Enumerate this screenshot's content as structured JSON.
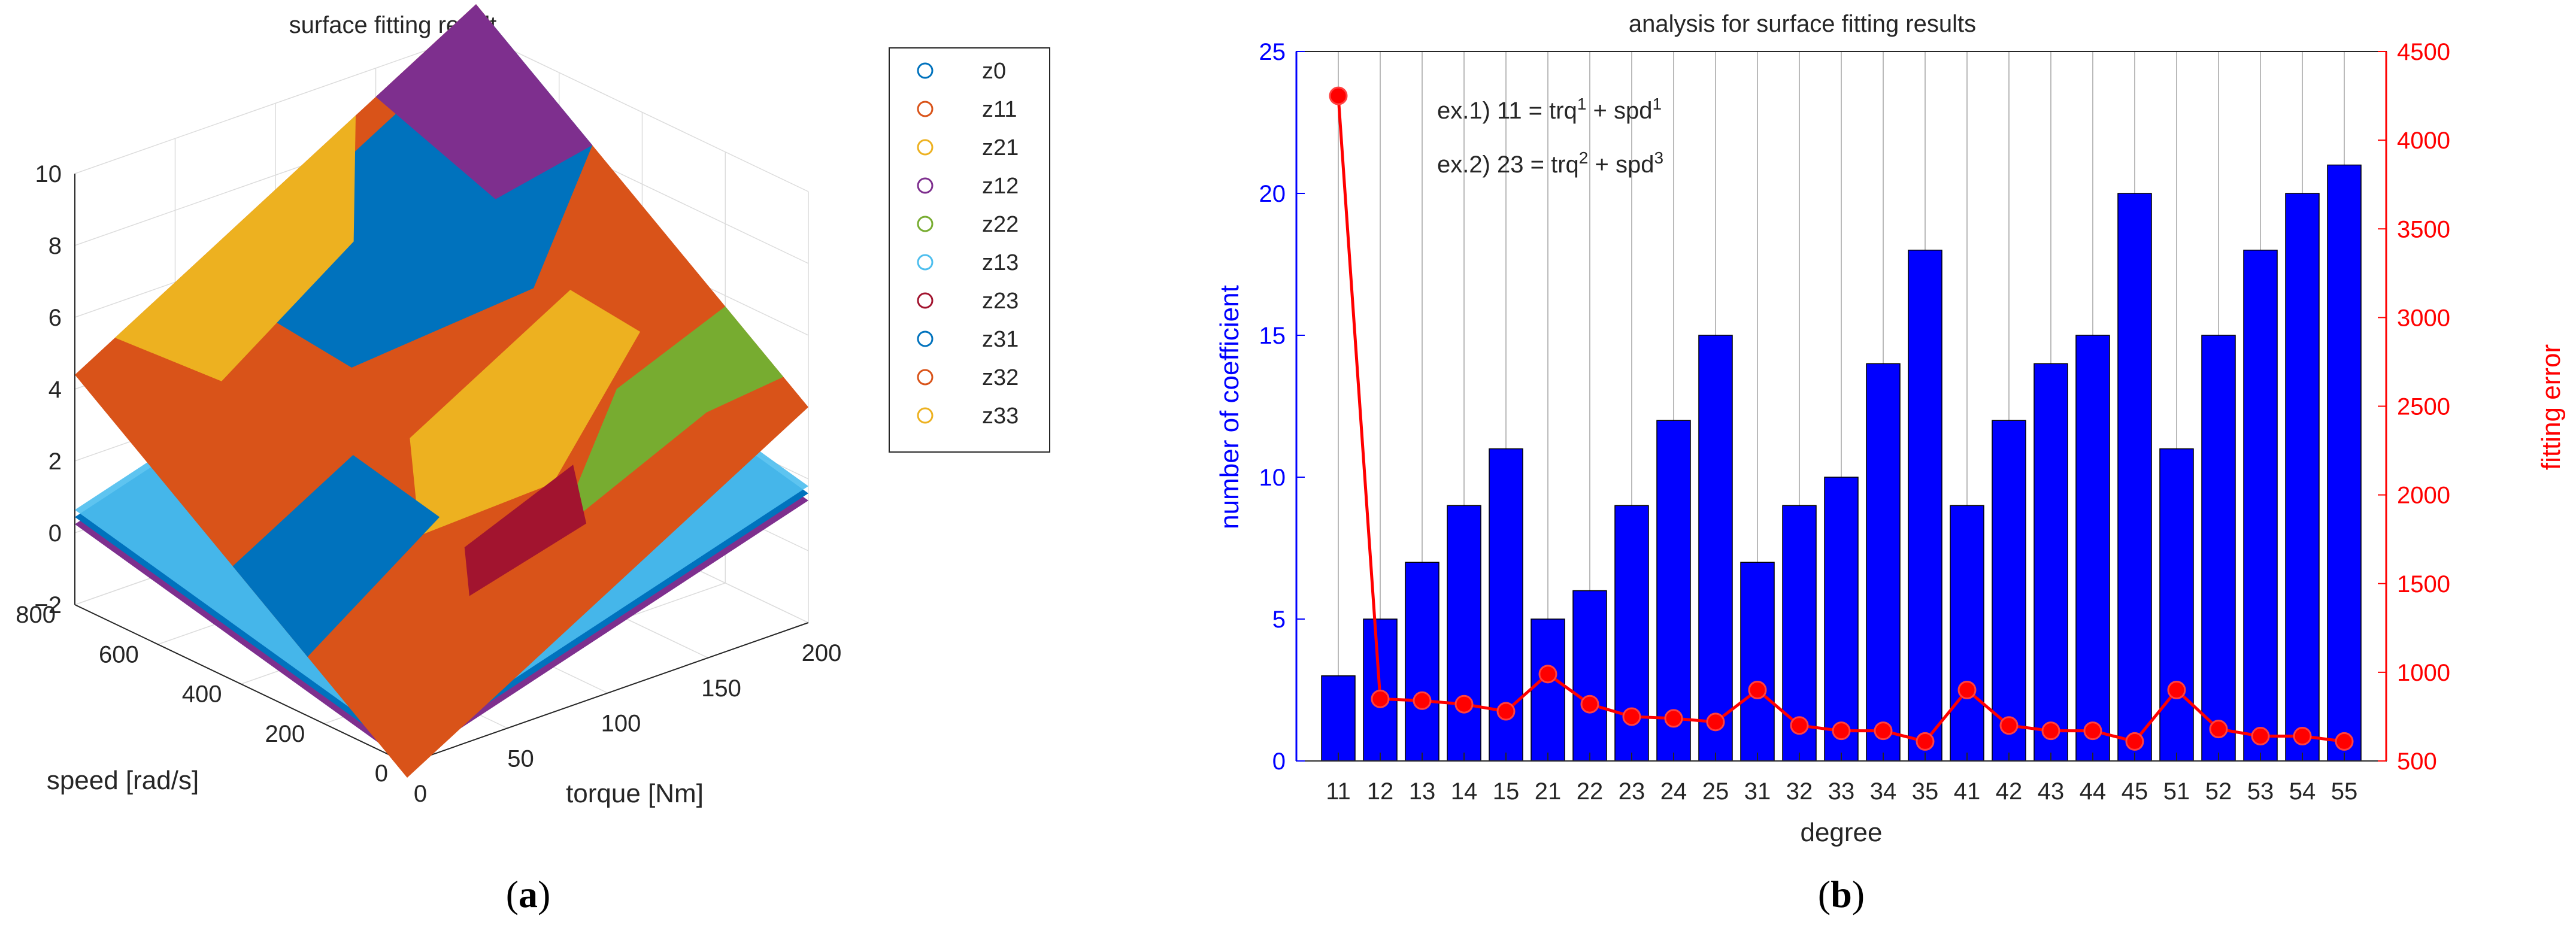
{
  "panel_a": {
    "caption_open": "(",
    "caption_letter": "a",
    "caption_close": ")",
    "chart_data": {
      "type": "scatter",
      "title": "surface fitting result",
      "xlabel": "torque [Nm]",
      "ylabel": "speed [rad/s]",
      "zlabel": "",
      "xlim": [
        0,
        200
      ],
      "ylim": [
        0,
        800
      ],
      "zlim": [
        -2,
        10
      ],
      "x_ticks": [
        "0",
        "50",
        "100",
        "150",
        "200"
      ],
      "y_ticks": [
        "0",
        "200",
        "400",
        "600",
        "800"
      ],
      "z_ticks": [
        "−2",
        "0",
        "2",
        "4",
        "6",
        "8",
        "10"
      ],
      "grid": true,
      "legend_placement": "right",
      "series": [
        {
          "name": "z0",
          "color": "#0072BD"
        },
        {
          "name": "z11",
          "color": "#D95319"
        },
        {
          "name": "z21",
          "color": "#EDB120"
        },
        {
          "name": "z12",
          "color": "#7E2F8E"
        },
        {
          "name": "z22",
          "color": "#77AC30"
        },
        {
          "name": "z13",
          "color": "#4DBEEE"
        },
        {
          "name": "z23",
          "color": "#A2142F"
        },
        {
          "name": "z31",
          "color": "#0072BD"
        },
        {
          "name": "z32",
          "color": "#D95319"
        },
        {
          "name": "z33",
          "color": "#EDB120"
        }
      ]
    }
  },
  "panel_b": {
    "caption_open": "(",
    "caption_letter": "b",
    "caption_close": ")",
    "annotation_1": {
      "prefix": "ex.1) 11 = trq",
      "sup1": "1",
      "mid": " + spd",
      "sup2": "1"
    },
    "annotation_2": {
      "prefix": "ex.2) 23 = trq",
      "sup1": "2",
      "mid": " + spd",
      "sup2": "3"
    },
    "chart_data": {
      "type": "bar",
      "title": "analysis for surface fitting results",
      "xlabel": "degree",
      "ylabel": "number of coefficient",
      "y2label": "fitting error",
      "categories": [
        "11",
        "12",
        "13",
        "14",
        "15",
        "21",
        "22",
        "23",
        "24",
        "25",
        "31",
        "32",
        "33",
        "34",
        "35",
        "41",
        "42",
        "43",
        "44",
        "45",
        "51",
        "52",
        "53",
        "54",
        "55"
      ],
      "ylim": [
        0,
        25
      ],
      "y_ticks": [
        0,
        5,
        10,
        15,
        20,
        25
      ],
      "y2lim": [
        500,
        4500
      ],
      "y2_ticks": [
        500,
        1000,
        1500,
        2000,
        2500,
        3000,
        3500,
        4000,
        4500
      ],
      "grid": "vertical lines",
      "series": [
        {
          "name": "",
          "type": "bar",
          "axis": "left",
          "color": "#0000FF",
          "values": [
            3,
            5,
            7,
            9,
            11,
            5,
            6,
            9,
            12,
            15,
            7,
            9,
            10,
            14,
            18,
            9,
            12,
            14,
            15,
            20,
            11,
            15,
            18,
            20,
            21
          ]
        },
        {
          "name": "",
          "type": "line",
          "axis": "right",
          "color": "#FF0000",
          "values": [
            4250,
            850,
            840,
            820,
            780,
            990,
            820,
            750,
            740,
            720,
            900,
            700,
            670,
            670,
            610,
            900,
            700,
            670,
            670,
            610,
            900,
            680,
            640,
            640,
            610
          ]
        }
      ]
    }
  }
}
